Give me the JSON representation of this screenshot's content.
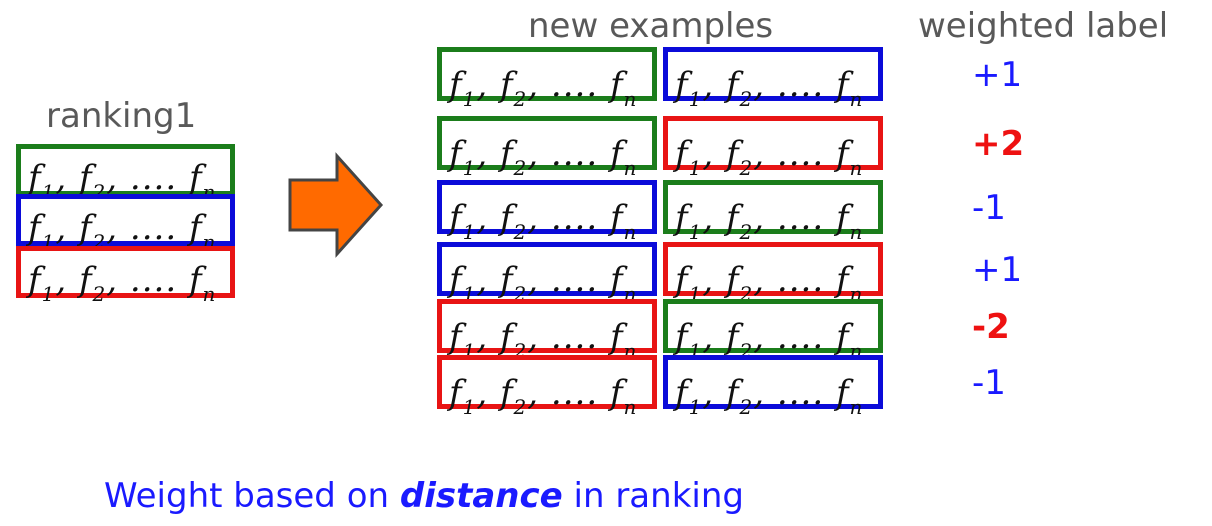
{
  "headings": {
    "ranking": "ranking1",
    "new_examples": "new examples",
    "weighted_label": "weighted label"
  },
  "feature": {
    "f": "f",
    "sub1": "1",
    "sub2": "2",
    "sep": ",",
    "ellipsis": "....",
    "subn": "n"
  },
  "colors": {
    "green": "#1b7d1b",
    "blue": "#0b0bd9",
    "red": "#e81414",
    "arrow_fill": "#ff6a00",
    "label_blue": "#1a1aff",
    "label_red": "#ee1111",
    "heading_gray": "#595959"
  },
  "ranking_boxes": [
    "green",
    "blue",
    "red"
  ],
  "example_pairs": [
    {
      "left": "green",
      "right": "blue",
      "label": "+1",
      "label_color": "blue",
      "bold": false
    },
    {
      "left": "green",
      "right": "red",
      "label": "+2",
      "label_color": "red",
      "bold": true
    },
    {
      "left": "blue",
      "right": "green",
      "label": "-1",
      "label_color": "blue",
      "bold": false
    },
    {
      "left": "blue",
      "right": "red",
      "label": "+1",
      "label_color": "blue",
      "bold": false
    },
    {
      "left": "red",
      "right": "green",
      "label": "-2",
      "label_color": "red",
      "bold": true
    },
    {
      "left": "red",
      "right": "blue",
      "label": "-1",
      "label_color": "blue",
      "bold": false
    }
  ],
  "caption": {
    "prefix": "Weight based on ",
    "emphasis": "distance",
    "suffix": " in ranking"
  }
}
